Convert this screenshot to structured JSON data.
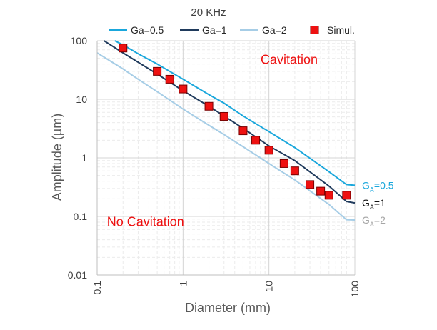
{
  "chart_data": {
    "type": "line",
    "title": "20 KHz",
    "xlabel": "Diameter (mm)",
    "ylabel": "Amplitude (µm)",
    "xscale": "log",
    "yscale": "log",
    "xlim": [
      0.1,
      100
    ],
    "ylim": [
      0.01,
      100
    ],
    "x_ticks": [
      "0.1",
      "1",
      "10",
      "100"
    ],
    "y_ticks": [
      "0.01",
      "0.1",
      "1",
      "10",
      "100"
    ],
    "grid": true,
    "legend_position": "top",
    "series": [
      {
        "name": "Ga=0.5",
        "kind": "line",
        "color": "#1aa7dc",
        "end_label": {
          "main": "G",
          "sub": "A",
          "rest": "=0.5"
        },
        "x": [
          0.16,
          0.2,
          0.3,
          0.5,
          1,
          2,
          3,
          5,
          10,
          20,
          50,
          80,
          100
        ],
        "y": [
          100,
          85,
          60,
          40,
          22,
          12,
          8.6,
          5.2,
          2.8,
          1.5,
          0.58,
          0.35,
          0.34
        ]
      },
      {
        "name": "Ga=1",
        "kind": "line",
        "color": "#1f3a5c",
        "end_label": {
          "main": "G",
          "sub": "A",
          "rest": "=1"
        },
        "x": [
          0.12,
          0.2,
          0.3,
          0.5,
          1,
          2,
          3,
          5,
          10,
          20,
          50,
          80,
          100
        ],
        "y": [
          100,
          62,
          43,
          27,
          14,
          7.6,
          5.2,
          3.2,
          1.6,
          0.9,
          0.33,
          0.18,
          0.17
        ]
      },
      {
        "name": "Ga=2",
        "kind": "line",
        "color": "#a6cde6",
        "end_label": {
          "main": "G",
          "sub": "A",
          "rest": "=2"
        },
        "x": [
          0.1,
          0.2,
          0.3,
          0.5,
          1,
          2,
          3,
          5,
          10,
          20,
          50,
          80,
          100
        ],
        "y": [
          62,
          33,
          22,
          13.5,
          6.8,
          3.6,
          2.5,
          1.55,
          0.8,
          0.42,
          0.16,
          0.088,
          0.087
        ]
      },
      {
        "name": "Simul.",
        "kind": "marker",
        "color": "#ee1111",
        "x": [
          0.2,
          0.5,
          0.7,
          1,
          2,
          3,
          5,
          7,
          10,
          15,
          20,
          30,
          40,
          50,
          80
        ],
        "y": [
          75,
          30,
          22,
          15,
          7.6,
          5.1,
          2.9,
          2.0,
          1.35,
          0.8,
          0.6,
          0.35,
          0.27,
          0.23,
          0.23
        ]
      }
    ],
    "annotations": [
      {
        "text": "Cavitation",
        "color": "#ee1111",
        "at_x": 8,
        "at_y": 40
      },
      {
        "text": "No Cavitation",
        "color": "#ee1111",
        "at_x": 0.13,
        "at_y": 0.068
      }
    ]
  }
}
